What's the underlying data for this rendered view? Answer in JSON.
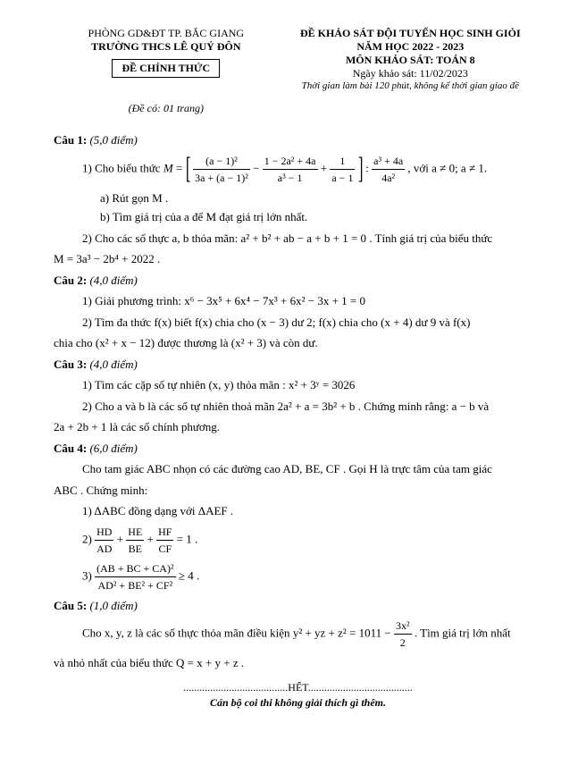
{
  "header": {
    "left_line1": "PHÒNG GD&ĐT TP. BẮC GIANG",
    "left_line2": "TRƯỜNG THCS LÊ QUÝ ĐÔN",
    "official": "ĐỀ CHÍNH THỨC",
    "page_count": "(Đề có: 01 trang)",
    "right_line1": "ĐỀ KHẢO SÁT ĐỘI TUYỂN HỌC SINH GIỎI",
    "right_line2": "NĂM HỌC 2022 - 2023",
    "right_line3": "MÔN KHẢO SÁT: TOÁN 8",
    "right_line4": "Ngày khảo sát: 11/02/2023",
    "right_line5": "Thời gian làm bài 120 phút, không kể thời gian giao đề"
  },
  "q1": {
    "title": "Câu 1:",
    "points": "(5,0 điểm)",
    "p1_lead": "1) Cho biểu thức ",
    "p1_tail": ", với a ≠ 0; a ≠ 1.",
    "p1a": "a) Rút gọn M .",
    "p1b": "b) Tìm giá trị của a để M đạt giá trị lớn nhất.",
    "p2_lead": "2) Cho các số thực a, b thỏa mãn: ",
    "p2_eq": "a² + b² + ab − a + b + 1 = 0",
    "p2_tail": ". Tính giá trị của biểu thức",
    "p2_M": "M = 3a³ − 2b⁴ + 2022 .",
    "frac1_num": "(a − 1)²",
    "frac1_den": "3a + (a − 1)²",
    "frac2_num": "1 − 2a² + 4a",
    "frac2_den": "a³ − 1",
    "frac3_num": "1",
    "frac3_den": "a − 1",
    "frac4_num": "a³ + 4a",
    "frac4_den": "4a²"
  },
  "q2": {
    "title": "Câu 2:",
    "points": "(4,0 điểm)",
    "p1": "1) Giải phương trình: x⁶ − 3x⁵ + 6x⁴ − 7x³ + 6x² − 3x + 1 = 0",
    "p2a": "2) Tìm đa thức f(x) biết f(x) chia cho (x − 3) dư 2; f(x) chia cho (x + 4) dư 9 và f(x)",
    "p2b": "chia cho (x² + x − 12) được thương là (x² + 3) và còn dư."
  },
  "q3": {
    "title": "Câu 3:",
    "points": "(4,0 điểm)",
    "p1": "1) Tìm các cặp số tự nhiên (x, y) thỏa mãn :  x² + 3ʸ = 3026",
    "p2a": "2) Cho a và b là các số tự nhiên thoả mãn 2a² + a = 3b² + b . Chứng minh rằng: a − b  và",
    "p2b": "2a + 2b + 1 là các số chính phương."
  },
  "q4": {
    "title": "Câu 4:",
    "points": "(6,0 điểm)",
    "intro1": "Cho tam giác ABC nhọn có các đường cao AD, BE, CF . Gọi H là trực tâm của tam giác",
    "intro2": "ABC . Chứng minh:",
    "p1": "1) ΔABC đồng dạng với ΔAEF .",
    "p2_eq_rhs": " = 1 .",
    "p2_lead": "2) ",
    "f_hd": "HD",
    "f_ad": "AD",
    "f_he": "HE",
    "f_be": "BE",
    "f_hf": "HF",
    "f_cf": "CF",
    "p3_lead": "3) ",
    "p3_num": "(AB + BC + CA)²",
    "p3_den": "AD² + BE² + CF²",
    "p3_rhs": " ≥ 4 ."
  },
  "q5": {
    "title": "Câu 5:",
    "points": "(1,0 điểm)",
    "p1a": "Cho x, y, z là các số thực thỏa mãn điều kiện ",
    "p1_eq_l": "y² + yz + z² = 1011 − ",
    "p1_frac_num": "3x²",
    "p1_frac_den": "2",
    "p1b": ". Tìm giá trị lớn nhất",
    "p2": "và nhỏ nhất của biểu thức Q = x + y + z ."
  },
  "footer": {
    "end": ".......................................HẾT.......................................",
    "note": "Cán bộ coi thi không giải thích gì thêm."
  }
}
